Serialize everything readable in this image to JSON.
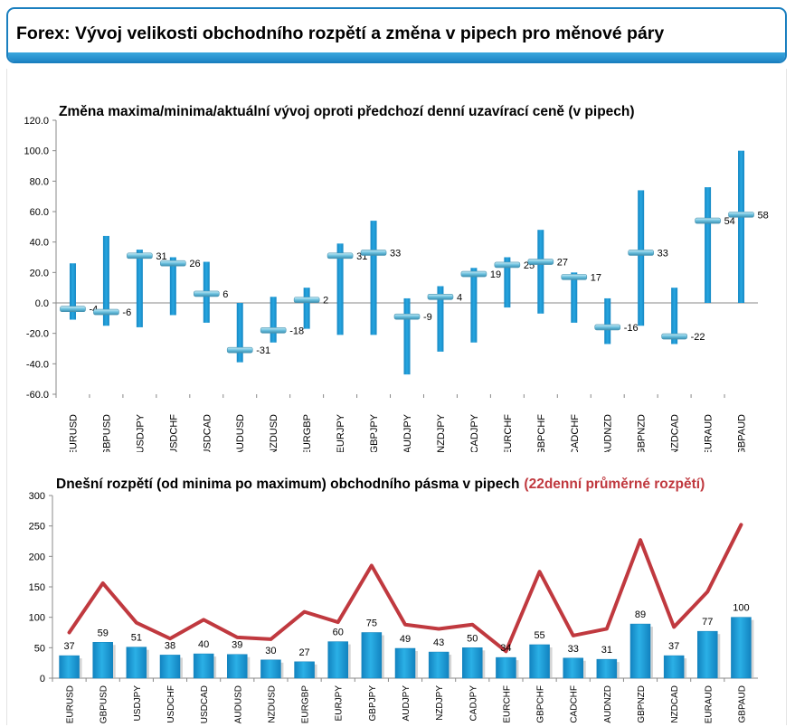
{
  "header": {
    "title": "Forex: Vývoj velikosti obchodního rozpětí a změna v pipech pro měnové páry"
  },
  "colors": {
    "bar": "#1e9ad6",
    "bar_dark": "#0f7fb8",
    "avg_line": "#c0393f",
    "marker": "#8fd0e6",
    "title_red": "#c0393f"
  },
  "chart_data": [
    {
      "type": "floating-bar",
      "title": "Změna maxima/minima/aktuální vývoj oproti předchozí denní uzavírací ceně (v pipech)",
      "ylim": [
        -60,
        120
      ],
      "yticks": [
        "120.0",
        "100.0",
        "80.0",
        "60.0",
        "40.0",
        "20.0",
        "0.0",
        "-20.0",
        "-40.0",
        "-60.0"
      ],
      "categories": [
        "EURUSD",
        "GBPUSD",
        "USDJPY",
        "USDCHF",
        "USDCAD",
        "AUDUSD",
        "NZDUSD",
        "EURGBP",
        "EURJPY",
        "GBPJPY",
        "AUDJPY",
        "NZDJPY",
        "CADJPY",
        "EURCHF",
        "GBPCHF",
        "CADCHF",
        "AUDNZD",
        "GBPNZD",
        "NZDCAD",
        "EURAUD",
        "GBPAUD"
      ],
      "high": [
        26,
        44,
        35,
        30,
        27,
        0,
        4,
        10,
        39,
        54,
        3,
        11,
        23,
        30,
        48,
        20,
        3,
        74,
        10,
        76,
        100
      ],
      "low": [
        -11,
        -15,
        -16,
        -8,
        -13,
        -39,
        -26,
        -17,
        -21,
        -21,
        -47,
        -32,
        -26,
        -3,
        -7,
        -13,
        -27,
        -15,
        -27,
        0,
        0
      ],
      "current": [
        -4,
        -6,
        31,
        26,
        6,
        -31,
        -18,
        2,
        31,
        33,
        -9,
        4,
        19,
        25,
        27,
        17,
        -16,
        33,
        -22,
        54,
        58
      ],
      "labels": [
        "-4",
        "-6",
        "31",
        "26",
        "6",
        "-31",
        "-18",
        "2",
        "31",
        "33",
        "-9",
        "4",
        "19",
        "25",
        "27",
        "17",
        "-16",
        "33",
        "-22",
        "54",
        "58"
      ]
    },
    {
      "type": "bar+line",
      "title": "Dnešní rozpětí (od minima po maximum) obchodního pásma v pipech",
      "title_suffix": "(22denní průměrné rozpětí)",
      "ylim": [
        0,
        300
      ],
      "yticks": [
        "300",
        "250",
        "200",
        "150",
        "100",
        "50",
        "0"
      ],
      "categories": [
        "EURUSD",
        "GBPUSD",
        "USDJPY",
        "USDCHF",
        "USDCAD",
        "AUDUSD",
        "NZDUSD",
        "EURGBP",
        "EURJPY",
        "GBPJPY",
        "AUDJPY",
        "NZDJPY",
        "CADJPY",
        "EURCHF",
        "GBPCHF",
        "CADCHF",
        "AUDNZD",
        "GBPNZD",
        "NZDCAD",
        "EURAUD",
        "GBPAUD"
      ],
      "values": [
        37,
        59,
        51,
        38,
        40,
        39,
        30,
        27,
        60,
        75,
        49,
        43,
        50,
        34,
        55,
        33,
        31,
        89,
        37,
        77,
        100
      ],
      "labels": [
        "37",
        "59",
        "51",
        "38",
        "40",
        "39",
        "30",
        "27",
        "60",
        "75",
        "49",
        "43",
        "50",
        "34",
        "55",
        "33",
        "31",
        "89",
        "37",
        "77",
        "100"
      ],
      "average": [
        75,
        156,
        91,
        65,
        96,
        67,
        64,
        109,
        92,
        185,
        88,
        81,
        88,
        44,
        175,
        70,
        81,
        227,
        84,
        142,
        252
      ]
    }
  ]
}
